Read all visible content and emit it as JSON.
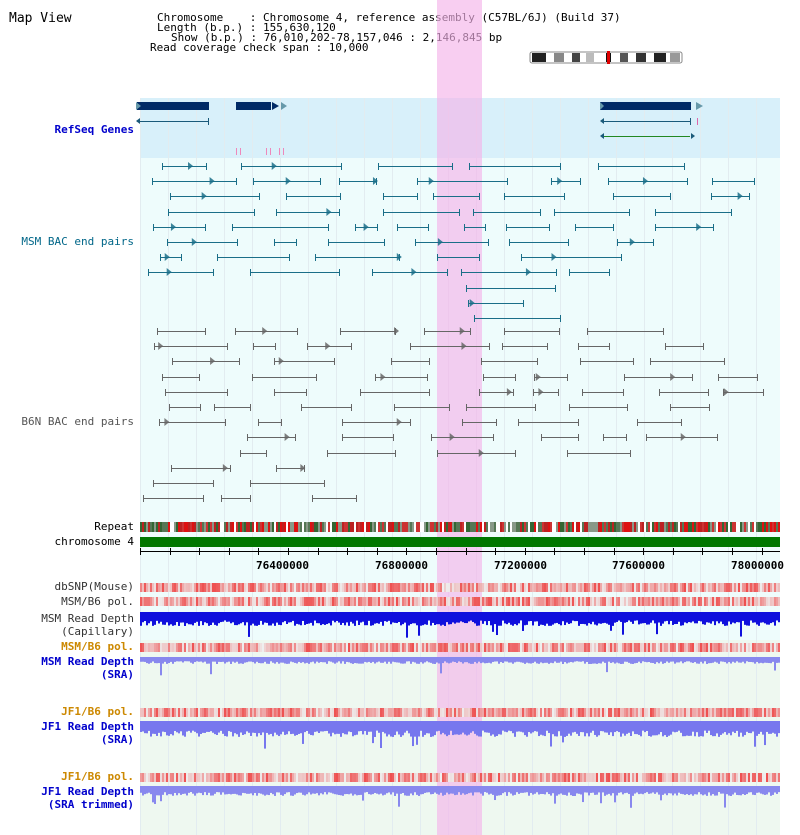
{
  "page": {
    "title": "Map View",
    "header": {
      "chromosome_line": "Chromosome    : Chromosome 4, reference assembly (C57BL/6J) (Build 37)",
      "length_line": "Length (b.p.) : 155,630,120",
      "show_line": "Show (b.p.) : 76,010,202-78,157,046 : 2,146,845 bp",
      "coverage_line": "Read coverage check span : 10,000"
    }
  },
  "tracks": {
    "refseq": {
      "label": "RefSeq Genes",
      "color": "#0000cc"
    },
    "msm_bac": {
      "label": "MSM BAC end pairs",
      "color": "#006688"
    },
    "b6n_bac": {
      "label": "B6N BAC end pairs",
      "color": "#666666"
    },
    "repeat": {
      "label": "Repeat"
    },
    "chromosome": {
      "label": "chromosome 4",
      "color": "#007700"
    },
    "dbsnp": {
      "label": "dbSNP(Mouse)"
    },
    "msm_b6_pol_1": {
      "label": "MSM/B6 pol."
    },
    "msm_depth_cap": {
      "label_1": "MSM Read Depth",
      "label_2": "(Capillary)"
    },
    "msm_b6_pol_2": {
      "label": "MSM/B6 pol."
    },
    "msm_depth_sra": {
      "label_1": "MSM Read Depth",
      "label_2": "(SRA)"
    },
    "jf1_b6_pol_1": {
      "label": "JF1/B6 pol."
    },
    "jf1_depth_sra": {
      "label_1": "JF1 Read Depth",
      "label_2": "(SRA)"
    },
    "jf1_b6_pol_2": {
      "label": "JF1/B6 pol."
    },
    "jf1_depth_trim": {
      "label_1": "JF1 Read Depth",
      "label_2": "(SRA trimmed)"
    }
  },
  "axis": {
    "ticks": [
      "76400000",
      "76800000",
      "77200000",
      "77600000",
      "78000000"
    ]
  },
  "colors": {
    "highlight": "#f4c8ee",
    "refseq_bg": "#d8f0fa",
    "track_bg": "#eefcfc",
    "sra_bg": "#eef8f0",
    "pol_orange": "#cc8800",
    "depth_blue": "#0000cc"
  }
}
